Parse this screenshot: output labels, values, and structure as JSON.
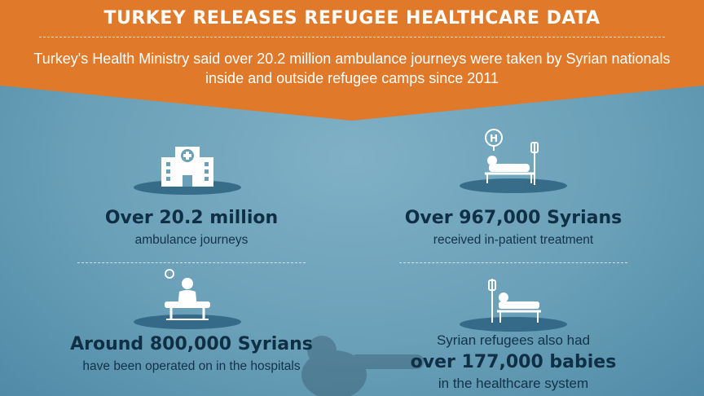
{
  "header": {
    "title": "TURKEY RELEASES REFUGEE HEALTHCARE DATA",
    "subtitle": "Turkey's Health Ministry said over 20.2 million ambulance journeys were taken by Syrian nationals inside and outside refugee camps since 2011"
  },
  "stats": [
    {
      "icon": "hospital-building-icon",
      "headline": "Over 20.2 million",
      "caption": "ambulance journeys"
    },
    {
      "icon": "hospital-bed-patient-icon",
      "headline": "Over 967,000 Syrians",
      "caption": "received in-patient treatment"
    },
    {
      "icon": "surgery-operating-table-icon",
      "headline": "Around 800,000 Syrians",
      "caption": "have been operated on in the hospitals"
    },
    {
      "icon": "patient-bed-iv-icon",
      "pre": "Syrian refugees also had",
      "headline": "over 177,000 babies",
      "caption": "in the healthcare system"
    }
  ],
  "colors": {
    "banner": "#e0792a",
    "background": "#6aa0b8",
    "text_dark": "#0f2f45",
    "icon": "#ffffff"
  }
}
